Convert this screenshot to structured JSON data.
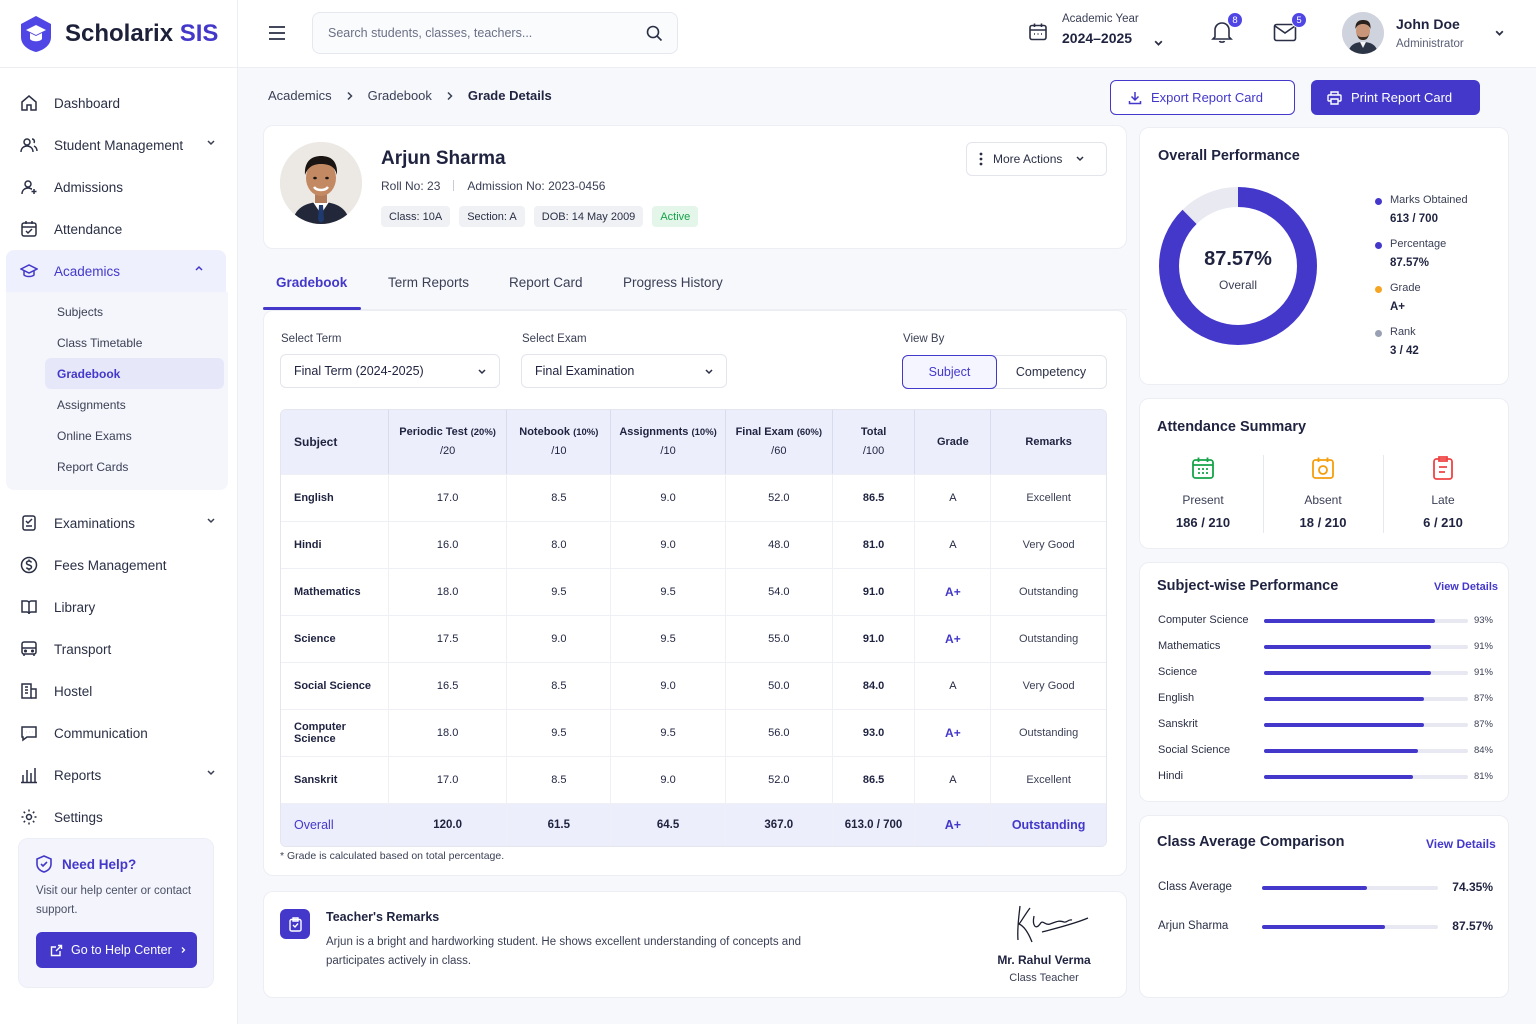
{
  "brand": {
    "name_main": "Scholarix",
    "name_accent": "SIS"
  },
  "sidebar": {
    "items": [
      {
        "label": "Dashboard",
        "icon": "home-icon"
      },
      {
        "label": "Student Management",
        "icon": "users-icon",
        "has_children": true
      },
      {
        "label": "Admissions",
        "icon": "user-plus-icon"
      },
      {
        "label": "Attendance",
        "icon": "calendar-check-icon"
      },
      {
        "label": "Academics",
        "icon": "graduation-cap-icon",
        "active": true,
        "expanded": true
      }
    ],
    "academics_sub": [
      "Subjects",
      "Class Timetable",
      "Gradebook",
      "Assignments",
      "Online Exams",
      "Report Cards"
    ],
    "items_after": [
      {
        "label": "Examinations",
        "icon": "clipboard-icon",
        "has_children": true
      },
      {
        "label": "Fees Management",
        "icon": "dollar-icon"
      },
      {
        "label": "Library",
        "icon": "book-icon"
      },
      {
        "label": "Transport",
        "icon": "bus-icon"
      },
      {
        "label": "Hostel",
        "icon": "building-icon"
      },
      {
        "label": "Communication",
        "icon": "chat-icon"
      },
      {
        "label": "Reports",
        "icon": "bar-chart-icon",
        "has_children": true
      },
      {
        "label": "Settings",
        "icon": "gear-icon"
      }
    ],
    "help": {
      "title": "Need Help?",
      "text": "Visit our help center or contact support.",
      "button": "Go to Help Center"
    }
  },
  "topbar": {
    "search_placeholder": "Search students, classes, teachers...",
    "academic_year_label": "Academic Year",
    "academic_year_value": "2024–2025",
    "notifications_count": "8",
    "messages_count": "5",
    "user_name": "John Doe",
    "user_role": "Administrator"
  },
  "breadcrumb": [
    "Academics",
    "Gradebook",
    "Grade Details"
  ],
  "actions": {
    "export": "Export Report Card",
    "print": "Print Report Card"
  },
  "student": {
    "name": "Arjun Sharma",
    "roll": "Roll No: 23",
    "admission": "Admission No: 2023-0456",
    "chips": [
      "Class: 10A",
      "Section: A",
      "DOB: 14 May 2009"
    ],
    "status": "Active",
    "more_actions": "More Actions"
  },
  "tabs": [
    "Gradebook",
    "Term Reports",
    "Report Card",
    "Progress History"
  ],
  "filters": {
    "term_label": "Select Term",
    "term_value": "Final Term (2024-2025)",
    "exam_label": "Select Exam",
    "exam_value": "Final Examination",
    "view_label": "View By",
    "view_options": [
      "Subject",
      "Competency"
    ],
    "view_selected": "Subject"
  },
  "grade_table": {
    "headers": [
      {
        "title": "Subject",
        "sub": ""
      },
      {
        "title": "Periodic Test",
        "tag": "(20%)",
        "sub": "/20"
      },
      {
        "title": "Notebook",
        "tag": "(10%)",
        "sub": "/10"
      },
      {
        "title": "Assignments",
        "tag": "(10%)",
        "sub": "/10"
      },
      {
        "title": "Final Exam",
        "tag": "(60%)",
        "sub": "/60"
      },
      {
        "title": "Total",
        "sub": "/100"
      },
      {
        "title": "Grade",
        "sub": ""
      },
      {
        "title": "Remarks",
        "sub": ""
      }
    ],
    "rows": [
      [
        "English",
        "17.0",
        "8.5",
        "9.0",
        "52.0",
        "86.5",
        "A",
        "Excellent"
      ],
      [
        "Hindi",
        "16.0",
        "8.0",
        "9.0",
        "48.0",
        "81.0",
        "A",
        "Very Good"
      ],
      [
        "Mathematics",
        "18.0",
        "9.5",
        "9.5",
        "54.0",
        "91.0",
        "A+",
        "Outstanding"
      ],
      [
        "Science",
        "17.5",
        "9.0",
        "9.5",
        "55.0",
        "91.0",
        "A+",
        "Outstanding"
      ],
      [
        "Social Science",
        "16.5",
        "8.5",
        "9.0",
        "50.0",
        "84.0",
        "A",
        "Very Good"
      ],
      [
        "Computer Science",
        "18.0",
        "9.5",
        "9.5",
        "56.0",
        "93.0",
        "A+",
        "Outstanding"
      ],
      [
        "Sanskrit",
        "17.0",
        "8.5",
        "9.0",
        "52.0",
        "86.5",
        "A",
        "Excellent"
      ]
    ],
    "overall": [
      "Overall",
      "120.0",
      "61.5",
      "64.5",
      "367.0",
      "613.0 / 700",
      "A+",
      "Outstanding"
    ],
    "note": "* Grade is calculated based on total percentage."
  },
  "remarks": {
    "title": "Teacher's Remarks",
    "text": "Arjun is a bright and hardworking student. He shows excellent understanding of concepts and participates actively in class.",
    "teacher_name": "Mr. Rahul Verma",
    "teacher_role": "Class Teacher"
  },
  "overall_performance": {
    "title": "Overall Performance",
    "percent": 87.57,
    "percent_label": "87.57%",
    "center_label": "Overall",
    "legend": [
      {
        "label": "Marks Obtained",
        "value": "613 / 700",
        "color": "#4338ca"
      },
      {
        "label": "Percentage",
        "value": "87.57%",
        "color": "#4338ca"
      },
      {
        "label": "Grade",
        "value": "A+",
        "color": "#f5a524"
      },
      {
        "label": "Rank",
        "value": "3 / 42",
        "color": "#9aa0b3"
      }
    ]
  },
  "attendance": {
    "title": "Attendance Summary",
    "items": [
      {
        "label": "Present",
        "value": "186 / 210",
        "color": "#16a34a"
      },
      {
        "label": "Absent",
        "value": "18 / 210",
        "color": "#f59e0b"
      },
      {
        "label": "Late",
        "value": "6 / 210",
        "color": "#ef4444"
      }
    ]
  },
  "subject_performance": {
    "title": "Subject-wise Performance",
    "link": "View Details",
    "items": [
      {
        "name": "Computer Science",
        "value": 93,
        "label": "93%"
      },
      {
        "name": "Mathematics",
        "value": 91,
        "label": "91%"
      },
      {
        "name": "Science",
        "value": 91,
        "label": "91%"
      },
      {
        "name": "English",
        "value": 87,
        "label": "87%"
      },
      {
        "name": "Sanskrit",
        "value": 87,
        "label": "87%"
      },
      {
        "name": "Social Science",
        "value": 84,
        "label": "84%"
      },
      {
        "name": "Hindi",
        "value": 81,
        "label": "81%"
      }
    ]
  },
  "class_comparison": {
    "title": "Class Average Comparison",
    "link": "View Details",
    "items": [
      {
        "name": "Class Average",
        "value": 74.35,
        "label": "74.35%"
      },
      {
        "name": "Arjun Sharma",
        "value": 87.57,
        "label": "87.57%"
      }
    ]
  }
}
